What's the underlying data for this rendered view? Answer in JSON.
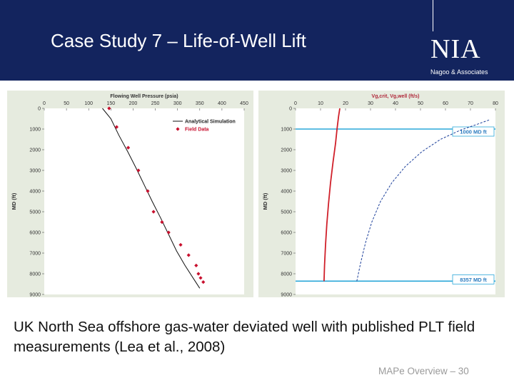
{
  "slide": {
    "title": "Case Study 7 – Life-of-Well Lift",
    "logo_mark": "NIA",
    "logo_sub": "Nagoo & Associates",
    "caption": "UK North Sea offshore gas-water deviated well with published PLT field measurements (Lea et al., 2008)",
    "footer": "MAPe Overview – 30"
  },
  "colors": {
    "header_bg": "#13245e",
    "panel_bg": "#e6ebdf",
    "field_marker": "#c8102e",
    "reference_line": "#2aa7d8"
  },
  "chart_data": [
    {
      "type": "scatter",
      "title": "Flowing Well Pressure (psia)",
      "ylabel": "MD (ft)",
      "xlim": [
        0,
        450
      ],
      "ylim": [
        9000,
        0
      ],
      "x_ticks": [
        "0",
        "50",
        "100",
        "150",
        "200",
        "250",
        "300",
        "350",
        "400",
        "450"
      ],
      "y_ticks": [
        "0",
        "1000",
        "2000",
        "3000",
        "4000",
        "5000",
        "6000",
        "7000",
        "8000",
        "9000"
      ],
      "legend": [
        "Analytical Simulation",
        "Field Data"
      ],
      "legend_position": "top-right",
      "series": [
        {
          "name": "Analytical Simulation",
          "kind": "line",
          "x": [
            131,
            150,
            168,
            188,
            207,
            225,
            243,
            262,
            280,
            298,
            317,
            335,
            350
          ],
          "y": [
            0,
            500,
            1300,
            2100,
            2900,
            3700,
            4500,
            5300,
            6100,
            6900,
            7600,
            8200,
            8700
          ]
        },
        {
          "name": "Field Data",
          "kind": "markers",
          "x": [
            146,
            163,
            189,
            212,
            233,
            246,
            265,
            280,
            307,
            325,
            342,
            347,
            352,
            358
          ],
          "y": [
            0,
            900,
            1900,
            3000,
            4000,
            5000,
            5500,
            6000,
            6600,
            7100,
            7600,
            8000,
            8200,
            8400
          ]
        }
      ]
    },
    {
      "type": "line",
      "title": "Vg,crit, Vg,well (ft/s)",
      "ylabel": "MD (ft)",
      "xlim": [
        0,
        80
      ],
      "ylim": [
        9000,
        0
      ],
      "x_ticks": [
        "0",
        "10",
        "20",
        "30",
        "40",
        "50",
        "60",
        "70",
        "80"
      ],
      "y_ticks": [
        "0",
        "1000",
        "2000",
        "3000",
        "4000",
        "5000",
        "6000",
        "7000",
        "8000",
        "9000"
      ],
      "reference_lines": [
        {
          "label": "1000 MD ft",
          "y": 1000
        },
        {
          "label": "8357 MD ft",
          "y": 8357
        }
      ],
      "series": [
        {
          "name": "Vg,crit",
          "kind": "solid",
          "x": [
            11.4,
            11.6,
            12.0,
            12.5,
            13.2,
            14.0,
            15.0,
            16.0,
            16.6,
            17.2,
            17.7
          ],
          "y": [
            8357,
            7600,
            6600,
            5600,
            4600,
            3600,
            2600,
            1700,
            1000,
            400,
            0
          ]
        },
        {
          "name": "Vg,well",
          "kind": "dashed",
          "x": [
            24.5,
            26,
            28,
            30.5,
            34,
            38.5,
            44,
            50.5,
            58,
            66,
            72,
            77.5
          ],
          "y": [
            8357,
            7500,
            6500,
            5500,
            4500,
            3600,
            2800,
            2100,
            1500,
            1050,
            800,
            560
          ]
        }
      ]
    }
  ]
}
